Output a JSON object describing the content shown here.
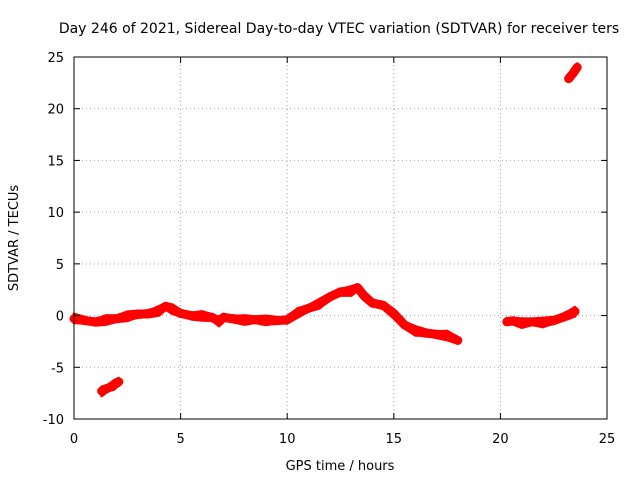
{
  "chart_data": {
    "type": "line",
    "title": "Day 246 of 2021, Sidereal Day-to-day VTEC variation (SDTVAR) for receiver ters",
    "xlabel": "GPS time / hours",
    "ylabel": "SDTVAR / TECUs",
    "xlim": [
      0,
      25
    ],
    "ylim": [
      -10,
      25
    ],
    "xticks": [
      0,
      5,
      10,
      15,
      20,
      25
    ],
    "yticks": [
      -10,
      -5,
      0,
      5,
      10,
      15,
      20,
      25
    ],
    "grid": true,
    "series": [
      {
        "name": "segment-1",
        "color": "#ff0000",
        "x": [
          0,
          0.5,
          1.0,
          1.5,
          2.0,
          2.5,
          3.0,
          3.5,
          4.0,
          4.3,
          4.6,
          5.0,
          5.5,
          6.0,
          6.5,
          6.8,
          7.0,
          7.5,
          8.0,
          8.5,
          9.0,
          9.5,
          10.0,
          10.5,
          11.0,
          11.5,
          12.0,
          12.5,
          13.0,
          13.3,
          13.6,
          14.0,
          14.5,
          15.0,
          15.5,
          16.0,
          16.5,
          17.0,
          17.5,
          18.0
        ],
        "y": [
          -0.3,
          -0.5,
          -0.6,
          -0.4,
          -0.3,
          -0.1,
          0.1,
          0.2,
          0.5,
          0.9,
          0.6,
          0.2,
          0.0,
          0.0,
          -0.2,
          -0.6,
          -0.2,
          -0.3,
          -0.4,
          -0.4,
          -0.5,
          -0.5,
          -0.4,
          0.3,
          0.7,
          1.1,
          1.8,
          2.3,
          2.4,
          2.7,
          1.9,
          1.2,
          1.0,
          0.2,
          -0.9,
          -1.5,
          -1.7,
          -1.8,
          -1.9,
          -2.4
        ]
      },
      {
        "name": "segment-2",
        "color": "#ff0000",
        "x": [
          1.3,
          1.6,
          1.9,
          2.1
        ],
        "y": [
          -7.3,
          -7.0,
          -6.7,
          -6.4
        ]
      },
      {
        "name": "segment-3",
        "color": "#ff0000",
        "x": [
          20.3,
          20.6,
          21.0,
          21.5,
          22.0,
          22.5,
          23.0,
          23.5
        ],
        "y": [
          -0.6,
          -0.5,
          -0.7,
          -0.6,
          -0.7,
          -0.5,
          -0.1,
          0.4
        ]
      },
      {
        "name": "segment-4",
        "color": "#ff0000",
        "x": [
          23.2,
          23.4,
          23.6
        ],
        "y": [
          22.9,
          23.4,
          24.0
        ]
      }
    ]
  }
}
